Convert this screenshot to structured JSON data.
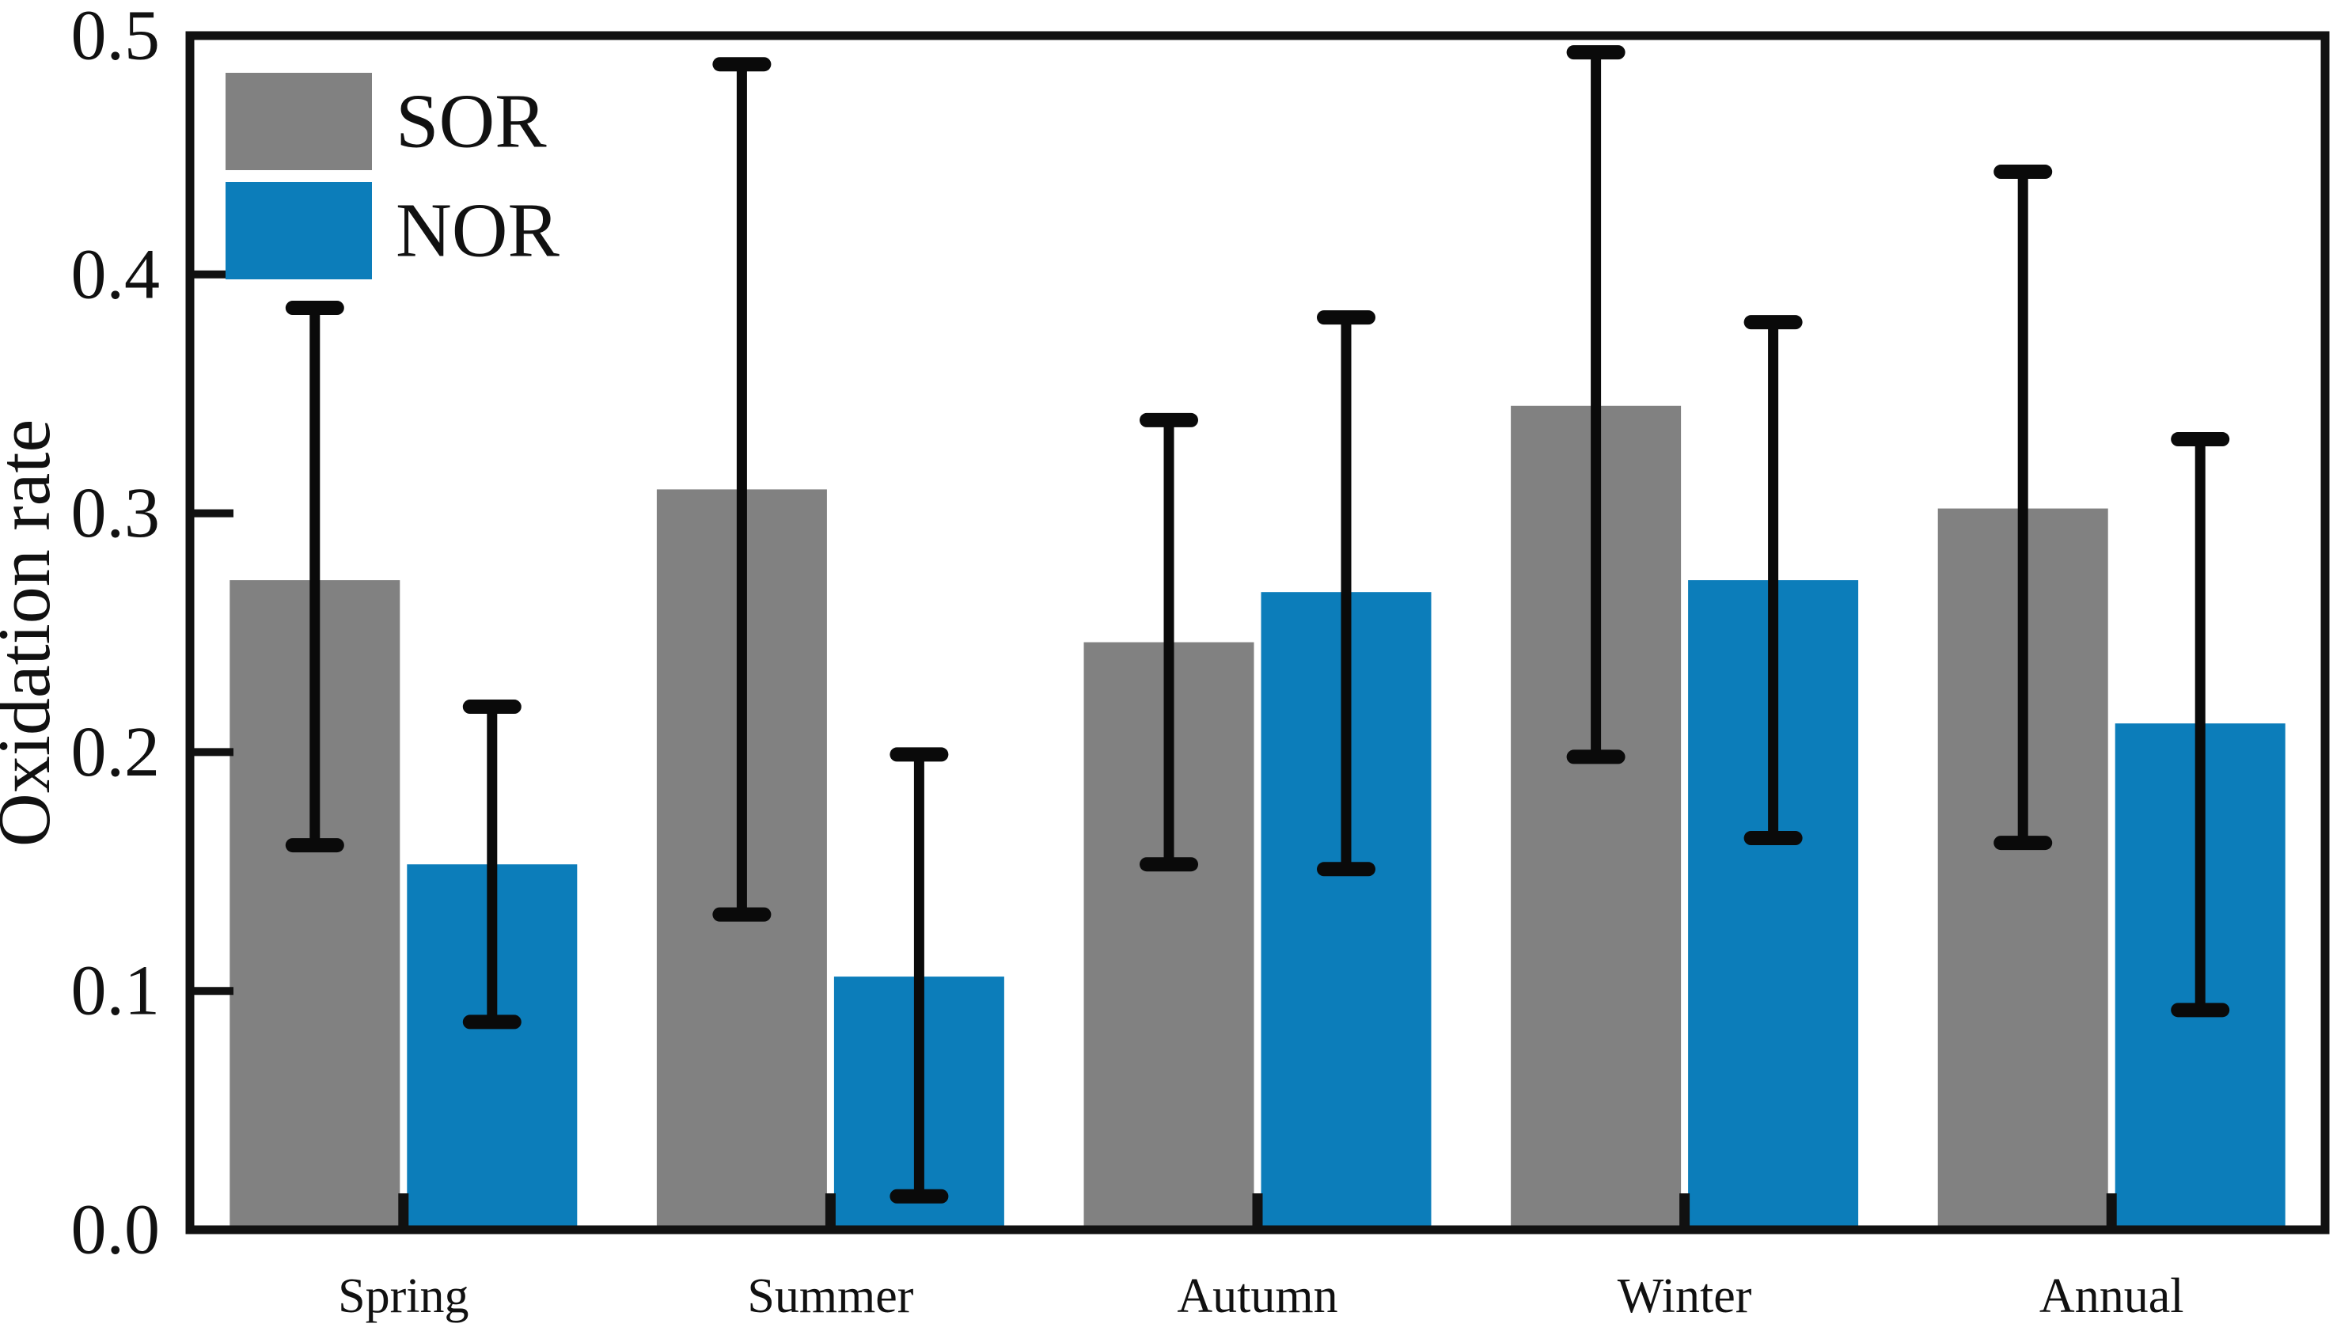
{
  "figure": {
    "background": "#ffffff",
    "frame_color": "#111111",
    "text_color": "#111111",
    "error_bar_color": "#0a0a0a"
  },
  "chart_data": {
    "type": "bar",
    "title": "",
    "xlabel": "",
    "ylabel": "Oxidation rate",
    "ylim": [
      0.0,
      0.5
    ],
    "yticks": [
      "0.0",
      "0.1",
      "0.2",
      "0.3",
      "0.4",
      "0.5"
    ],
    "grid": false,
    "legend_position": "upper-left",
    "categories": [
      "Spring",
      "Summer",
      "Autumn",
      "Winter",
      "Annual"
    ],
    "series": [
      {
        "name": "SOR",
        "color": "#818181",
        "values": [
          0.272,
          0.31,
          0.246,
          0.345,
          0.302
        ],
        "err_low": [
          0.161,
          0.132,
          0.153,
          0.198,
          0.162
        ],
        "err_high": [
          0.386,
          0.488,
          0.339,
          0.493,
          0.443
        ]
      },
      {
        "name": "NOR",
        "color": "#0c7dba",
        "values": [
          0.153,
          0.106,
          0.267,
          0.272,
          0.212
        ],
        "err_low": [
          0.087,
          0.014,
          0.151,
          0.164,
          0.092
        ],
        "err_high": [
          0.219,
          0.199,
          0.382,
          0.38,
          0.331
        ]
      }
    ]
  }
}
